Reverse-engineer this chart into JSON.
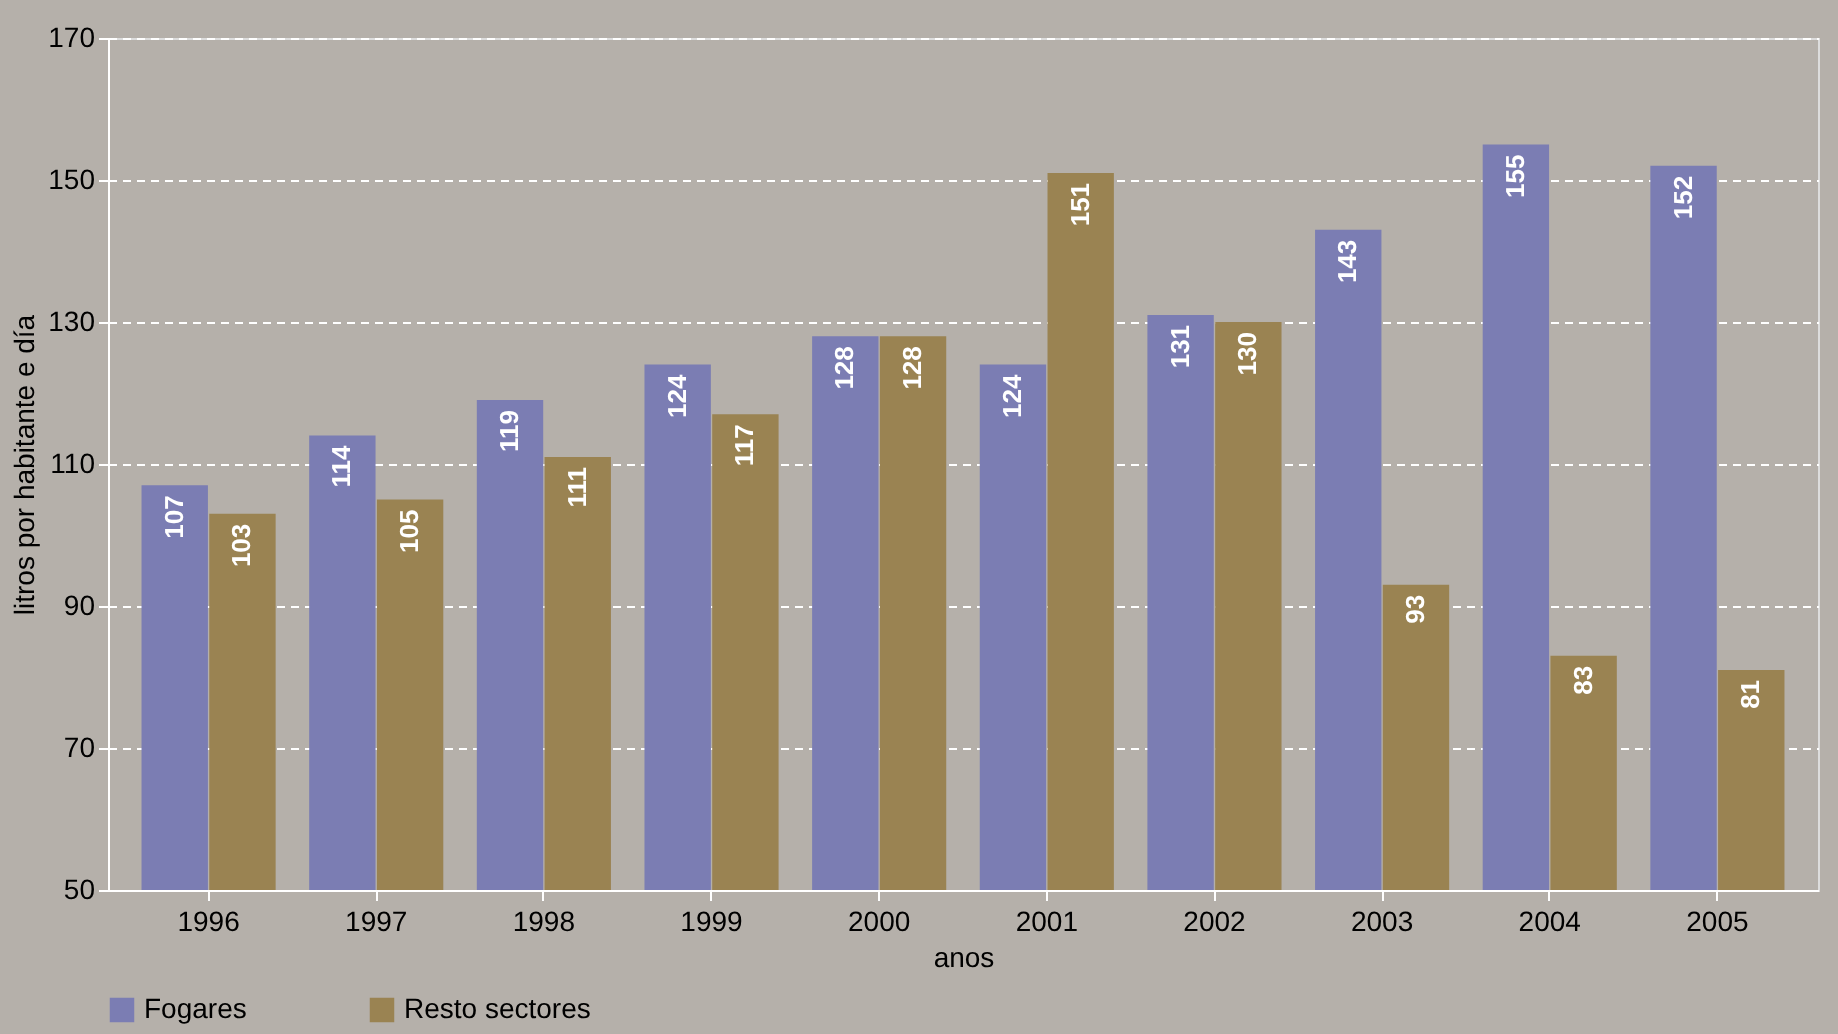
{
  "chart_data": {
    "type": "bar",
    "xlabel": "anos",
    "ylabel": "litros por habitante e día",
    "categories": [
      "1996",
      "1997",
      "1998",
      "1999",
      "2000",
      "2001",
      "2002",
      "2003",
      "2004",
      "2005"
    ],
    "series": [
      {
        "name": "Fogares",
        "color": "#7b7db3",
        "values": [
          107,
          114,
          119,
          124,
          128,
          124,
          131,
          143,
          155,
          152
        ]
      },
      {
        "name": "Resto sectores",
        "color": "#9a8352",
        "values": [
          103,
          105,
          111,
          117,
          128,
          151,
          130,
          93,
          83,
          81
        ]
      }
    ],
    "ylim": [
      50,
      170
    ],
    "yticks": [
      50,
      70,
      90,
      110,
      130,
      150,
      170
    ],
    "grid": "y",
    "legend": "bottom",
    "data_labels": true
  }
}
